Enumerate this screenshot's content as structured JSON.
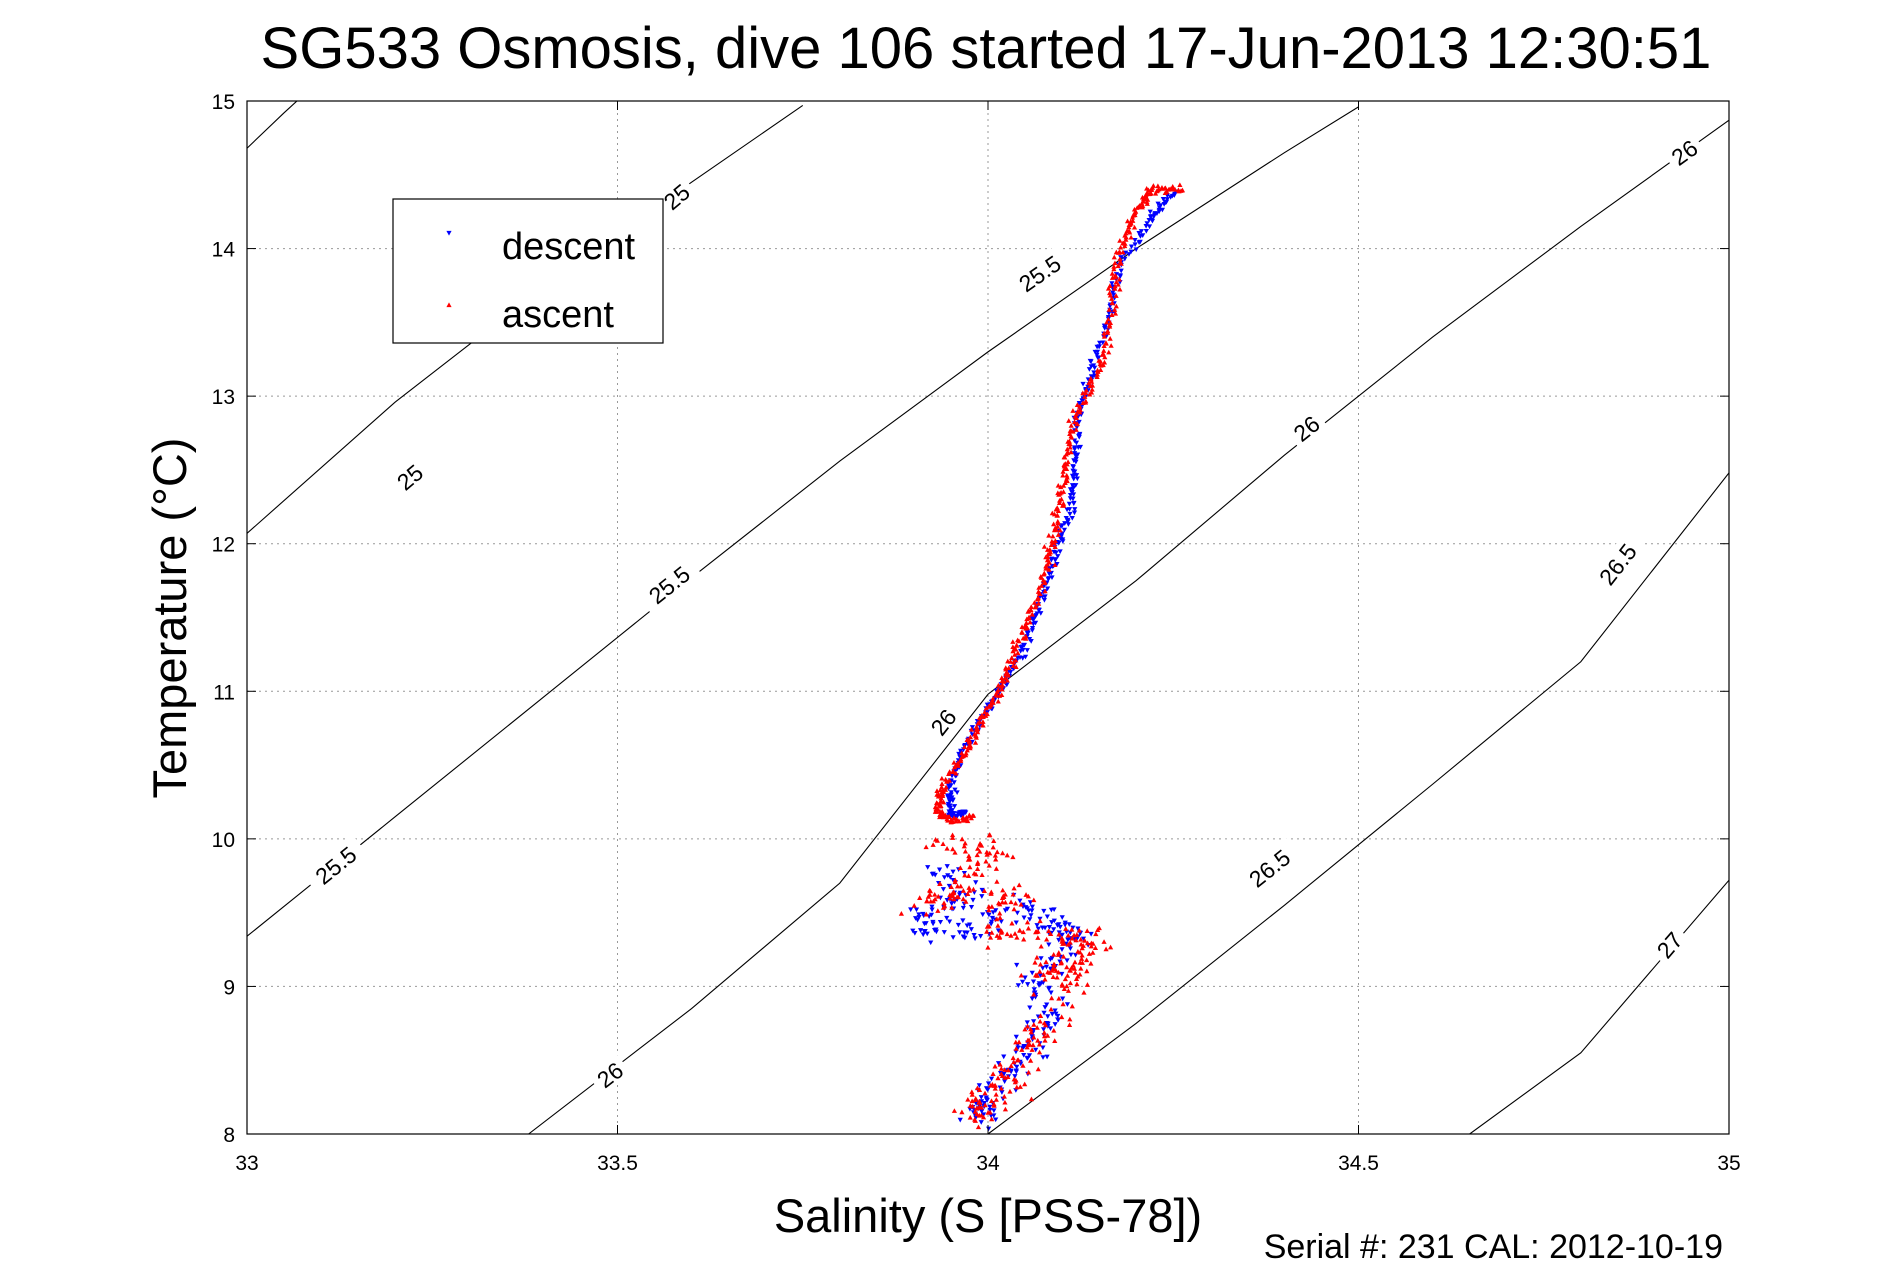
{
  "chart_data": {
    "type": "scatter",
    "title": "SG533 Osmosis, dive 106 started 17-Jun-2013 12:30:51",
    "xlabel": "Salinity (S [PSS-78])",
    "ylabel": "Temperature (°C)",
    "xlim": [
      33,
      35
    ],
    "ylim": [
      8,
      15
    ],
    "xticks": [
      33,
      33.5,
      34,
      34.5,
      35
    ],
    "xtick_labels": [
      "33",
      "33.5",
      "34",
      "34.5",
      "35"
    ],
    "yticks": [
      8,
      9,
      10,
      11,
      12,
      13,
      14,
      15
    ],
    "ytick_labels": [
      "8",
      "9",
      "10",
      "11",
      "12",
      "13",
      "14",
      "15"
    ],
    "grid": true,
    "legend_position": "top-left",
    "footer": "Serial #: 231  CAL: 2012-10-19",
    "colors": {
      "descent": "#0000ff",
      "ascent": "#ff0000",
      "contour": "#000000"
    },
    "contours": [
      {
        "level": "25",
        "points": [
          [
            33.0,
            14.68
          ],
          [
            33.05,
            14.92
          ],
          [
            33.1,
            15.15
          ]
        ],
        "labels": [
          [
            33.22,
            12.45
          ],
          [
            33.58,
            14.35
          ]
        ]
      },
      {
        "level": "25",
        "points": [
          [
            33.0,
            12.07
          ],
          [
            33.2,
            12.96
          ],
          [
            33.4,
            13.74
          ],
          [
            33.6,
            14.45
          ],
          [
            33.75,
            14.97
          ]
        ],
        "labels": []
      },
      {
        "level": "25.5",
        "points": [
          [
            33.0,
            9.34
          ],
          [
            33.2,
            10.15
          ],
          [
            33.4,
            10.96
          ],
          [
            33.6,
            11.77
          ],
          [
            33.8,
            12.56
          ],
          [
            34.0,
            13.3
          ],
          [
            34.2,
            14.0
          ],
          [
            34.4,
            14.65
          ],
          [
            34.5,
            14.96
          ]
        ],
        "labels": [
          [
            33.12,
            9.82
          ],
          [
            33.57,
            11.72
          ],
          [
            34.07,
            13.83
          ]
        ]
      },
      {
        "level": "26",
        "points": [
          [
            33.38,
            8.0
          ],
          [
            33.6,
            8.85
          ],
          [
            33.8,
            9.7
          ],
          [
            34.0,
            10.98
          ],
          [
            34.2,
            11.75
          ],
          [
            34.4,
            12.6
          ],
          [
            34.6,
            13.4
          ],
          [
            34.8,
            14.15
          ],
          [
            35.0,
            14.87
          ]
        ],
        "labels": [
          [
            33.49,
            8.4
          ],
          [
            33.94,
            10.79
          ],
          [
            34.43,
            12.78
          ],
          [
            34.94,
            14.65
          ]
        ]
      },
      {
        "level": "26.5",
        "points": [
          [
            34.0,
            8.0
          ],
          [
            34.2,
            8.75
          ],
          [
            34.4,
            9.55
          ],
          [
            34.6,
            10.37
          ],
          [
            34.8,
            11.2
          ],
          [
            35.0,
            12.48
          ]
        ],
        "labels": [
          [
            34.38,
            9.8
          ],
          [
            34.85,
            11.86
          ]
        ]
      },
      {
        "level": "27",
        "points": [
          [
            34.65,
            8.0
          ],
          [
            34.8,
            8.55
          ],
          [
            35.0,
            9.72
          ]
        ],
        "labels": [
          [
            34.92,
            9.28
          ]
        ]
      }
    ],
    "series": [
      {
        "name": "descent",
        "marker": "triangle-down",
        "segments": [
          {
            "points": [
              [
                34.25,
                14.38
              ],
              [
                34.22,
                14.2
              ],
              [
                34.18,
                13.9
              ],
              [
                34.16,
                13.5
              ],
              [
                34.14,
                13.15
              ],
              [
                34.12,
                12.85
              ],
              [
                34.12,
                12.5
              ],
              [
                34.11,
                12.2
              ],
              [
                34.09,
                11.9
              ],
              [
                34.07,
                11.6
              ],
              [
                34.05,
                11.3
              ],
              [
                34.02,
                11.05
              ],
              [
                33.99,
                10.8
              ],
              [
                33.96,
                10.55
              ],
              [
                33.95,
                10.3
              ],
              [
                33.95,
                10.15
              ],
              [
                33.97,
                10.18
              ]
            ],
            "jitter": 0.006
          },
          {
            "points": [
              [
                33.93,
                9.8
              ],
              [
                33.97,
                9.6
              ],
              [
                33.91,
                9.45
              ],
              [
                33.96,
                9.35
              ],
              [
                34.05,
                9.55
              ],
              [
                34.1,
                9.4
              ],
              [
                34.12,
                9.3
              ],
              [
                34.06,
                9.05
              ],
              [
                34.09,
                8.8
              ],
              [
                34.05,
                8.6
              ],
              [
                34.03,
                8.4
              ],
              [
                33.99,
                8.2
              ],
              [
                33.98,
                8.12
              ]
            ],
            "jitter": 0.028
          }
        ]
      },
      {
        "name": "ascent",
        "marker": "triangle-up",
        "segments": [
          {
            "points": [
              [
                34.26,
                14.4
              ],
              [
                34.22,
                14.4
              ],
              [
                34.2,
                14.25
              ],
              [
                34.18,
                14.0
              ],
              [
                34.17,
                13.7
              ],
              [
                34.16,
                13.3
              ],
              [
                34.13,
                13.0
              ],
              [
                34.11,
                12.7
              ],
              [
                34.1,
                12.4
              ],
              [
                34.09,
                12.1
              ],
              [
                34.08,
                11.85
              ],
              [
                34.06,
                11.55
              ],
              [
                34.04,
                11.3
              ],
              [
                34.02,
                11.05
              ],
              [
                33.99,
                10.8
              ],
              [
                33.97,
                10.6
              ],
              [
                33.94,
                10.35
              ],
              [
                33.93,
                10.2
              ],
              [
                33.95,
                10.12
              ],
              [
                33.98,
                10.15
              ]
            ],
            "jitter": 0.007
          },
          {
            "points": [
              [
                33.93,
                9.95
              ],
              [
                34.02,
                9.95
              ],
              [
                33.96,
                9.7
              ],
              [
                33.91,
                9.55
              ],
              [
                34.05,
                9.65
              ],
              [
                34.0,
                9.35
              ],
              [
                34.1,
                9.35
              ],
              [
                34.15,
                9.3
              ],
              [
                34.07,
                9.1
              ],
              [
                34.12,
                9.15
              ],
              [
                34.08,
                8.75
              ],
              [
                34.05,
                8.55
              ],
              [
                34.02,
                8.35
              ],
              [
                33.99,
                8.2
              ],
              [
                33.98,
                8.12
              ]
            ],
            "jitter": 0.03
          }
        ]
      }
    ]
  }
}
